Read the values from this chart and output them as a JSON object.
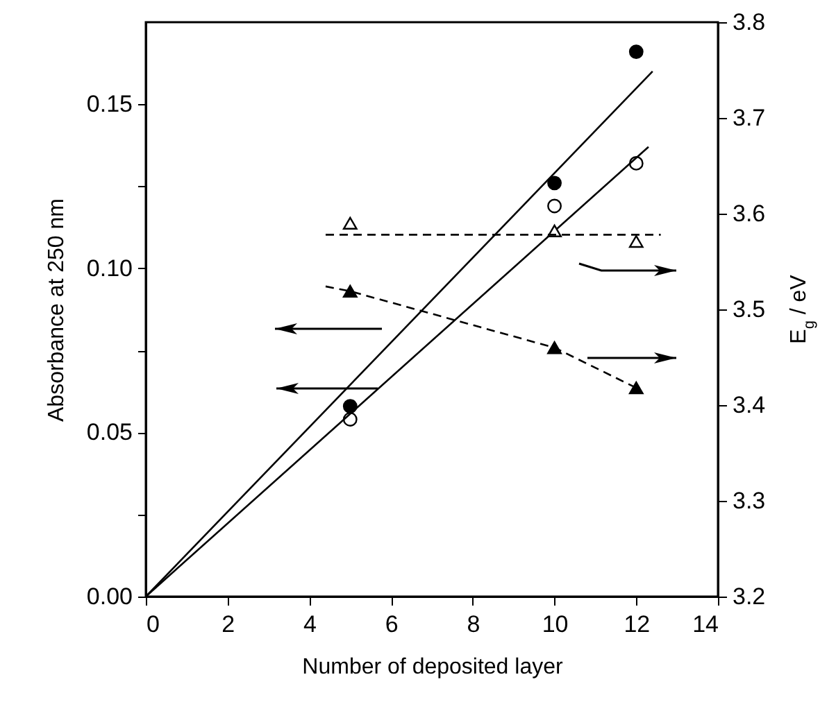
{
  "chart_data": {
    "type": "scatter",
    "xlabel": "Number of deposited layer",
    "ylabel": "Absorbance at 250 nm",
    "y2label": "E$_{g}$ / eV",
    "xlim": [
      0,
      14
    ],
    "xticks": [
      0,
      2,
      4,
      6,
      8,
      10,
      12,
      14
    ],
    "ylim": [
      0,
      0.175
    ],
    "yticks": [
      {
        "value": 0,
        "label": "0.00"
      },
      {
        "value": 0.025,
        "label": null
      },
      {
        "value": 0.05,
        "label": "0.05"
      },
      {
        "value": 0.075,
        "label": null
      },
      {
        "value": 0.1,
        "label": "0.10"
      },
      {
        "value": 0.125,
        "label": null
      },
      {
        "value": 0.15,
        "label": "0.15"
      }
    ],
    "y2lim": [
      3.2,
      3.8
    ],
    "y2ticks": [
      {
        "value": 3.2,
        "label": "3.2"
      },
      {
        "value": 3.3,
        "label": "3.3"
      },
      {
        "value": 3.4,
        "label": "3.4"
      },
      {
        "value": 3.5,
        "label": "3.5"
      },
      {
        "value": 3.6,
        "label": "3.6"
      },
      {
        "value": 3.7,
        "label": "3.7"
      },
      {
        "value": 3.8,
        "label": "3.8"
      }
    ],
    "grid": false,
    "series": [
      {
        "marker": "circle",
        "color": "#000000",
        "x": [
          5,
          10,
          12
        ],
        "values": [
          0.058,
          0.126,
          0.166
        ]
      },
      {
        "marker": "circle",
        "color": "#ffffff",
        "x": [
          5,
          10,
          12
        ],
        "values": [
          0.054,
          0.119,
          0.132
        ]
      },
      {
        "type": "line",
        "marker": "none",
        "line_style": "solid",
        "color": "#000000",
        "x": [
          0,
          12.4
        ],
        "values": [
          0,
          0.16
        ]
      },
      {
        "type": "line",
        "marker": "none",
        "line_style": "solid",
        "color": "#000000",
        "x": [
          0,
          12.3
        ],
        "values": [
          0,
          0.137
        ]
      },
      {
        "axis": "y2",
        "marker": "triangle",
        "color": "#ffffff",
        "x": [
          5,
          10,
          12
        ],
        "values": [
          3.59,
          3.582,
          3.571
        ]
      },
      {
        "type": "line",
        "axis": "y2",
        "marker": "none",
        "line_style": "dashed",
        "color": "#000000",
        "x": [
          4.4,
          12.6
        ],
        "values": [
          3.578,
          3.578
        ]
      },
      {
        "axis": "y2",
        "marker": "triangle",
        "color": "#000000",
        "x": [
          5,
          10,
          12
        ],
        "values": [
          3.519,
          3.46,
          3.418
        ]
      },
      {
        "type": "line",
        "axis": "y2",
        "marker": "none",
        "line_style": "dashed",
        "color": "#000000",
        "x": [
          4.4,
          5,
          10,
          12
        ],
        "values": [
          3.524,
          3.519,
          3.46,
          3.418
        ]
      }
    ]
  }
}
